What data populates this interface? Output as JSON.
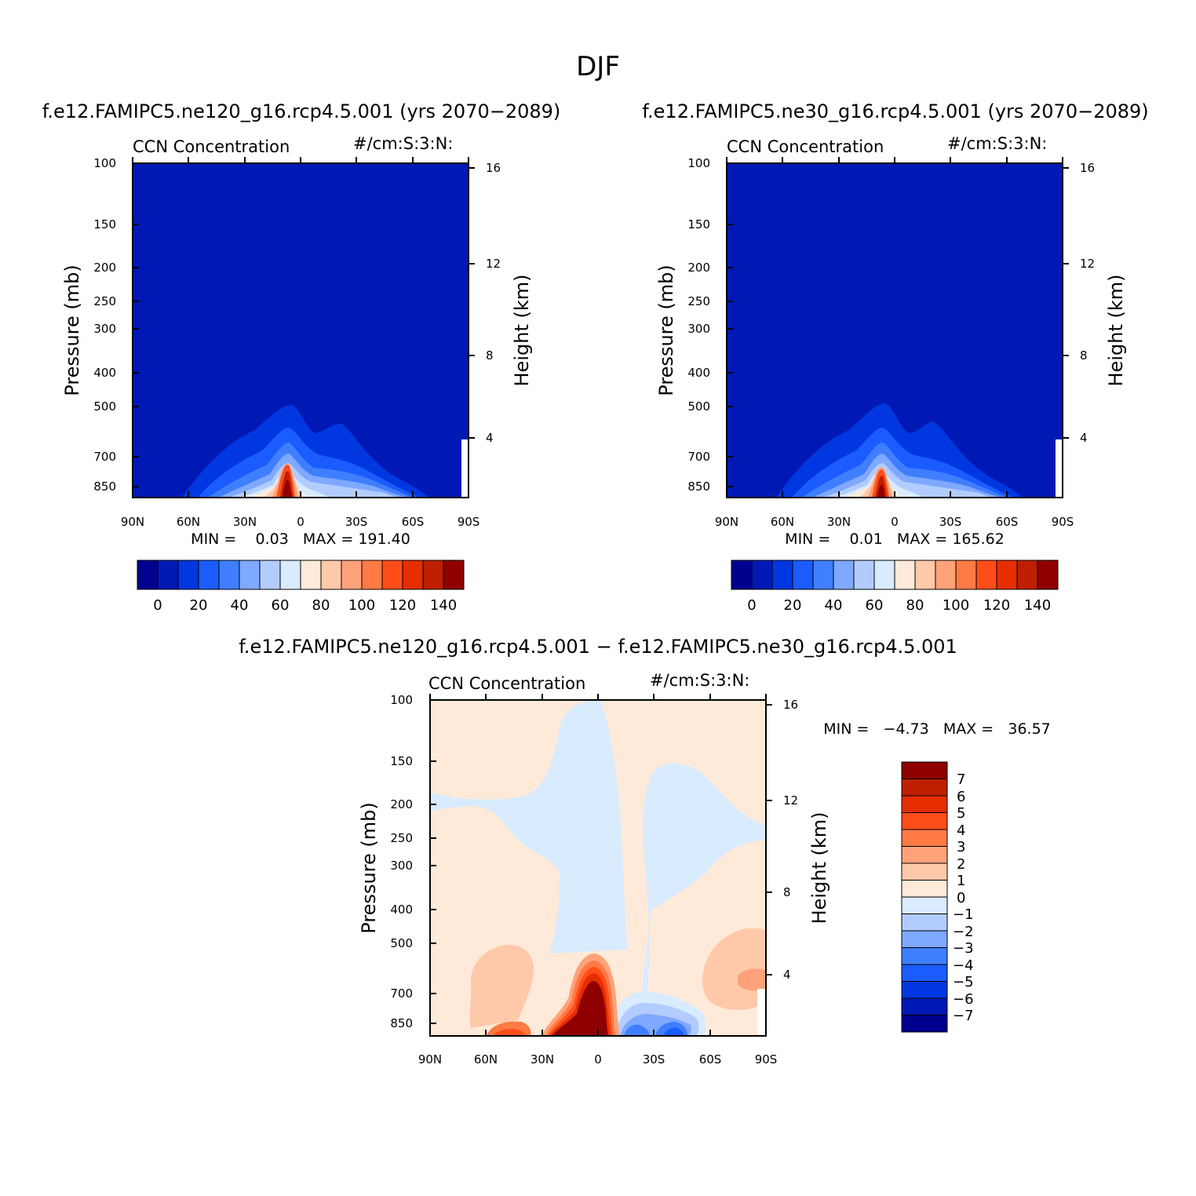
{
  "title": "DJF",
  "colors": {
    "blue_scale": [
      "#00008f",
      "#0019b4",
      "#0037e0",
      "#1a5cff",
      "#3f7fff",
      "#7fa8ff",
      "#b3ccff",
      "#d9ebff"
    ],
    "red_scale": [
      "#ffead9",
      "#ffc9aa",
      "#ffa27a",
      "#ff7a45",
      "#ff4d1a",
      "#e62e00",
      "#bf1f00",
      "#8f0000"
    ],
    "positive_anomaly": "#ffead9",
    "negative_anomaly": "#d9ebff"
  },
  "chart_data": [
    {
      "type": "heatmap",
      "id": "panel-ne120",
      "title": "f.e12.FAMIPC5.ne120_g16.rcp4.5.001 (yrs 2070−2089)",
      "left_label": "CCN Concentration",
      "right_label": "#/cm:S:3:N:",
      "ylabel": "Pressure (mb)",
      "ylabel_right": "Height (km)",
      "x_ticks": [
        "90N",
        "60N",
        "30N",
        "0",
        "30S",
        "60S",
        "90S"
      ],
      "y_ticks": [
        "100",
        "150",
        "200",
        "250",
        "300",
        "400",
        "500",
        "700",
        "850"
      ],
      "y2_ticks": [
        "16",
        "12",
        "8",
        "4"
      ],
      "stats": "MIN =    0.03   MAX = 191.40",
      "colorbar_labels": [
        "0",
        "20",
        "40",
        "60",
        "80",
        "100",
        "120",
        "140"
      ],
      "colorbar_orientation": "horizontal"
    },
    {
      "type": "heatmap",
      "id": "panel-ne30",
      "title": "f.e12.FAMIPC5.ne30_g16.rcp4.5.001 (yrs 2070−2089)",
      "left_label": "CCN Concentration",
      "right_label": "#/cm:S:3:N:",
      "ylabel": "Pressure (mb)",
      "ylabel_right": "Height (km)",
      "x_ticks": [
        "90N",
        "60N",
        "30N",
        "0",
        "30S",
        "60S",
        "90S"
      ],
      "y_ticks": [
        "100",
        "150",
        "200",
        "250",
        "300",
        "400",
        "500",
        "700",
        "850"
      ],
      "y2_ticks": [
        "16",
        "12",
        "8",
        "4"
      ],
      "stats": "MIN =    0.01   MAX = 165.62",
      "colorbar_labels": [
        "0",
        "20",
        "40",
        "60",
        "80",
        "100",
        "120",
        "140"
      ],
      "colorbar_orientation": "horizontal"
    },
    {
      "type": "heatmap",
      "id": "panel-diff",
      "title": "f.e12.FAMIPC5.ne120_g16.rcp4.5.001 − f.e12.FAMIPC5.ne30_g16.rcp4.5.001",
      "left_label": "CCN Concentration",
      "right_label": "#/cm:S:3:N:",
      "ylabel": "Pressure (mb)",
      "ylabel_right": "Height (km)",
      "x_ticks": [
        "90N",
        "60N",
        "30N",
        "0",
        "30S",
        "60S",
        "90S"
      ],
      "y_ticks": [
        "100",
        "150",
        "200",
        "250",
        "300",
        "400",
        "500",
        "700",
        "850"
      ],
      "y2_ticks": [
        "16",
        "12",
        "8",
        "4"
      ],
      "stats": "MIN =   −4.73   MAX =   36.57",
      "colorbar_labels": [
        "7",
        "6",
        "5",
        "4",
        "3",
        "2",
        "1",
        "0",
        "−1",
        "−2",
        "−3",
        "−4",
        "−5",
        "−6",
        "−7"
      ],
      "colorbar_orientation": "vertical"
    }
  ]
}
